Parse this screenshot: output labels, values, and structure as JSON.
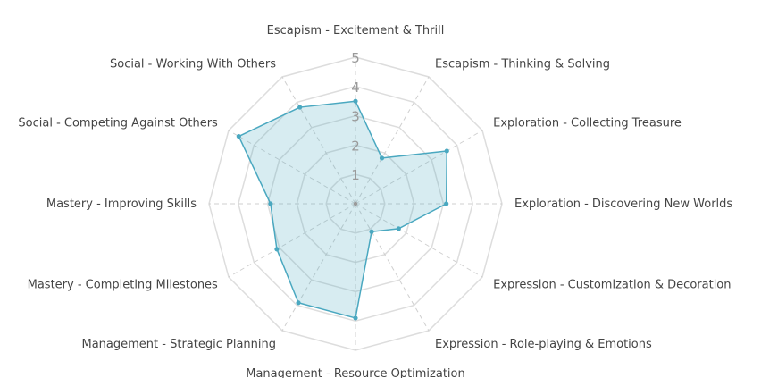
{
  "chart_data": {
    "type": "radar",
    "title": "",
    "axes": [
      "Escapism - Excitement & Thrill",
      "Escapism - Thinking & Solving",
      "Exploration - Collecting Treasure",
      "Exploration - Discovering New Worlds",
      "Expression - Customization & Decoration",
      "Expression - Role-playing & Emotions",
      "Management - Resource Optimization",
      "Management - Strategic Planning",
      "Mastery - Completing Milestones",
      "Mastery - Improving Skills",
      "Social - Competing Against Others",
      "Social - Working With Others"
    ],
    "ticks": [
      "1",
      "2",
      "3",
      "4",
      "5"
    ],
    "rlim": [
      0,
      5
    ],
    "series": [
      {
        "values": [
          3.5,
          1.8,
          3.6,
          3.1,
          1.7,
          1.1,
          3.9,
          3.9,
          3.1,
          2.9,
          4.6,
          3.8
        ]
      }
    ],
    "colors": {
      "line": "#4aa8c0",
      "fill": "rgba(74,168,192,0.22)",
      "grid": "#dddddd",
      "spoke": "#cfcfcf"
    }
  }
}
